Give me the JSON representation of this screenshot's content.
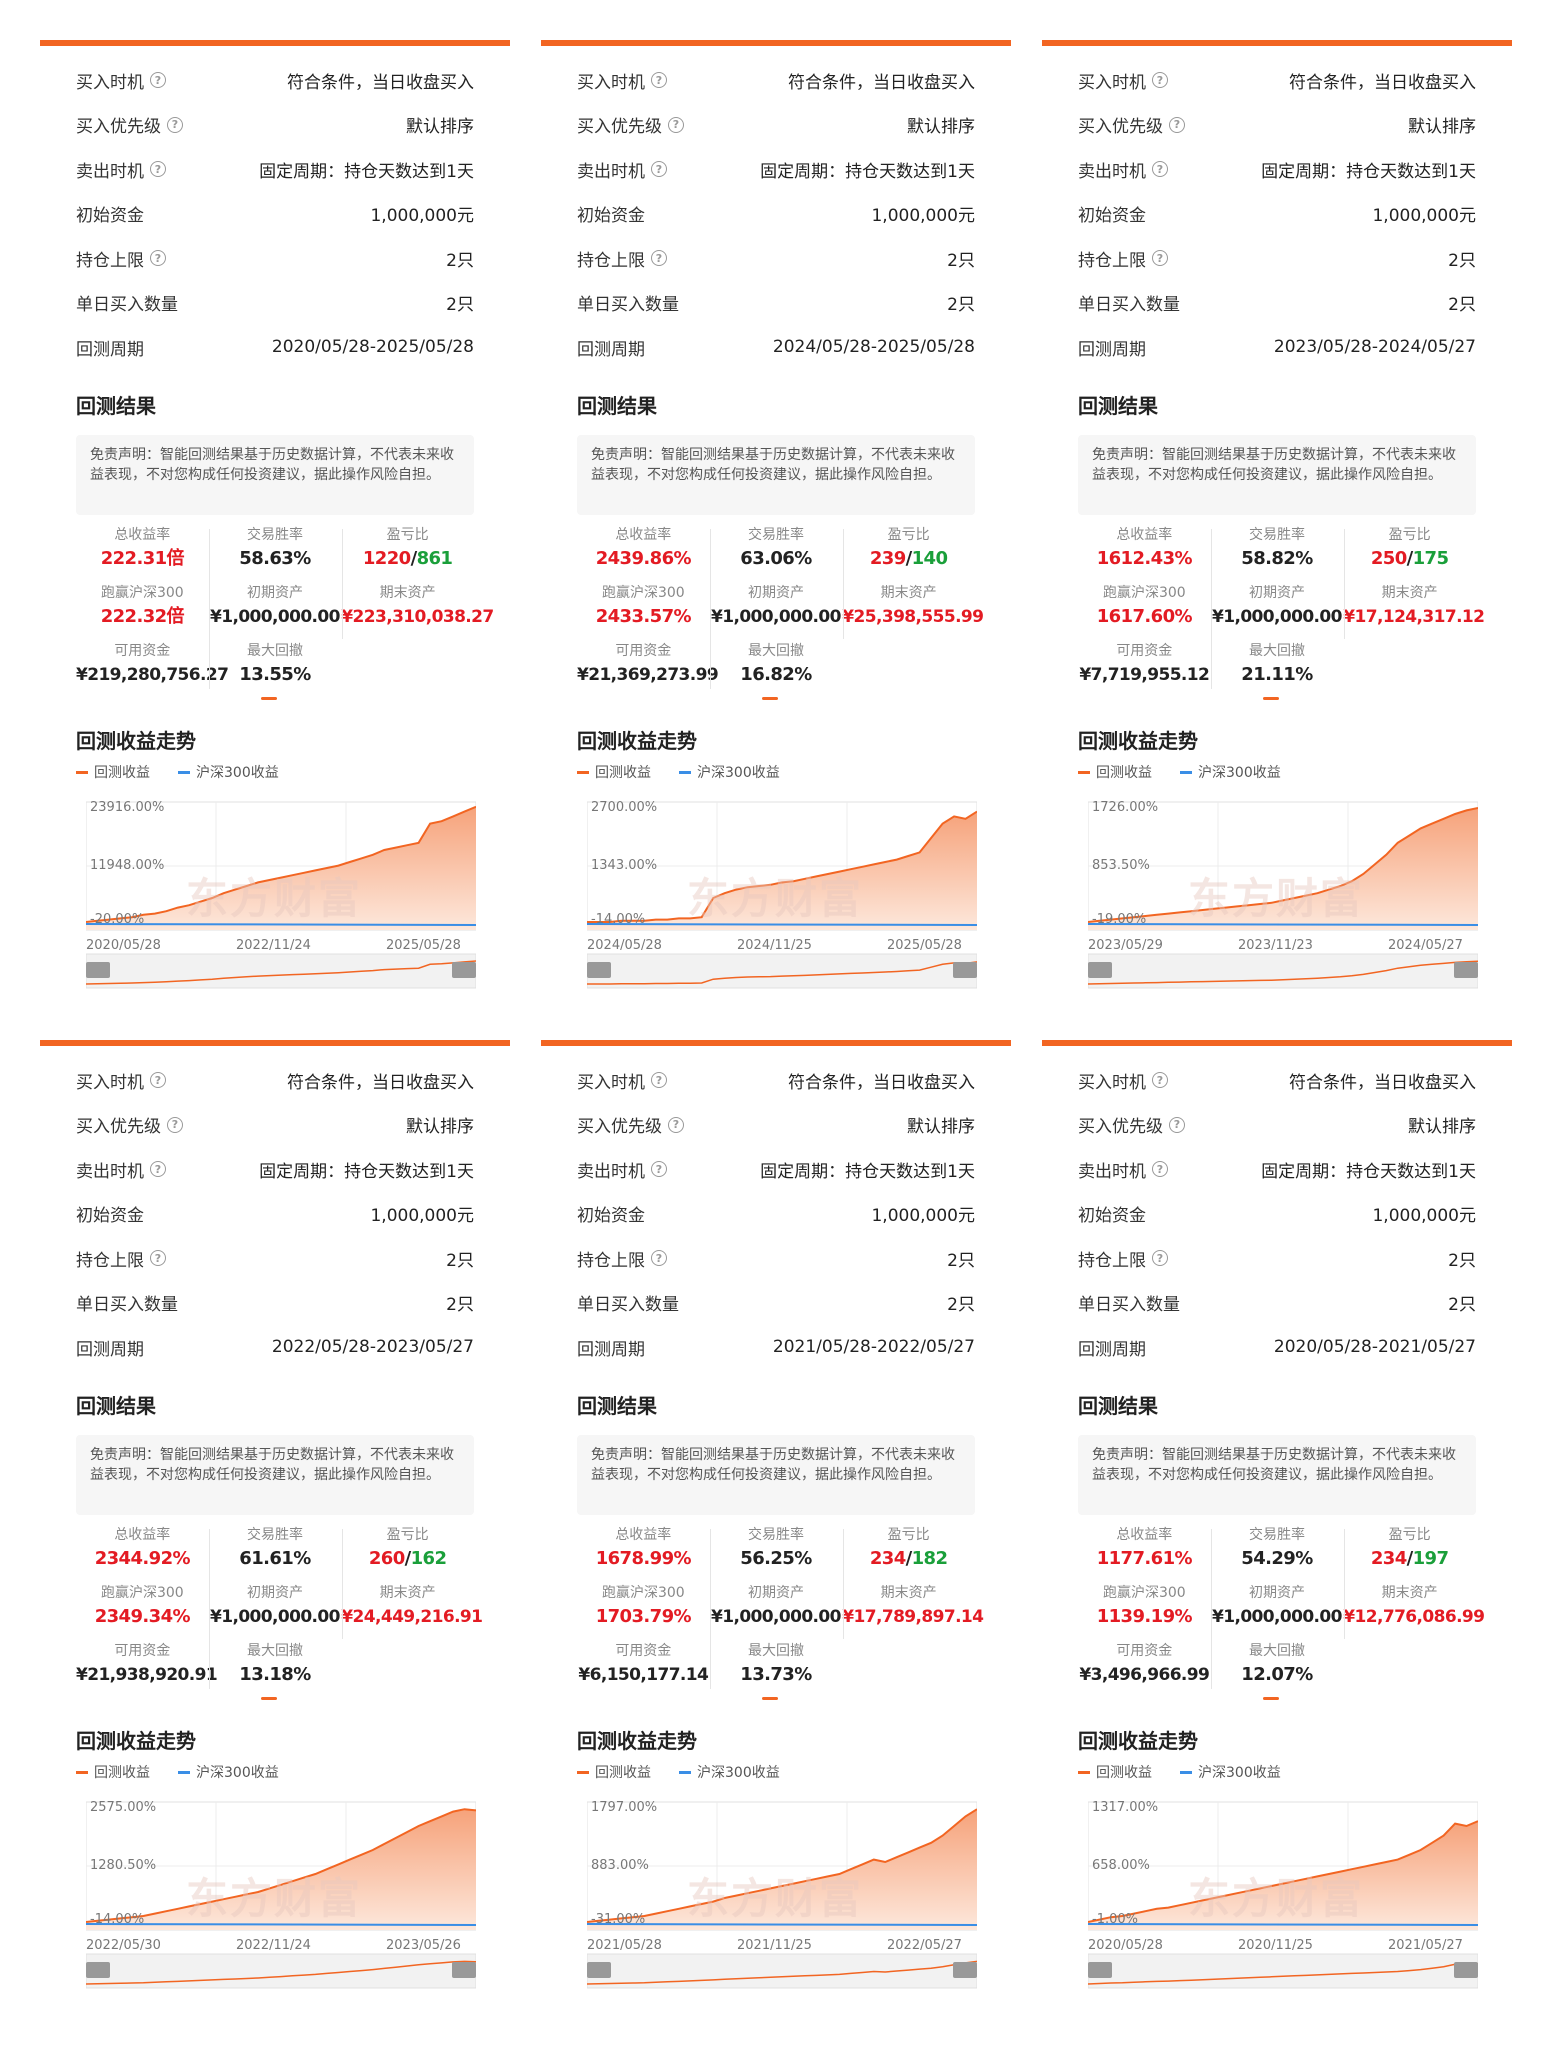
{
  "labels": {
    "buy_time": "买入时机",
    "buy_priority": "买入优先级",
    "sell_time": "卖出时机",
    "init_capital": "初始资金",
    "position_limit": "持仓上限",
    "daily_buy": "单日买入数量",
    "period": "回测周期",
    "result_title": "回测结果",
    "disclaimer": "免责声明：智能回测结果基于历史数据计算，不代表未来收益表现，不对您构成任何投资建议，据此操作风险自担。",
    "total_return": "总收益率",
    "win_rate": "交易胜率",
    "pl_ratio": "盈亏比",
    "beat_hs300": "跑赢沪深300",
    "init_assets": "初期资产",
    "final_assets": "期末资产",
    "available": "可用资金",
    "max_drawdown": "最大回撤",
    "trend_title": "回测收益走势",
    "legend_strategy": "回测收益",
    "legend_hs300": "沪深300收益",
    "watermark": "东方财富",
    "help_glyph": "?"
  },
  "colors": {
    "accent": "#f26522",
    "red": "#e31b23",
    "green": "#1a9f3a",
    "blue": "#3a8ee6"
  },
  "panels": [
    {
      "buy_time": "符合条件，当日收盘买入",
      "buy_priority": "默认排序",
      "sell_time": "固定周期：持仓天数达到1天",
      "init_capital": "1,000,000元",
      "position_limit": "2只",
      "daily_buy": "2只",
      "period": "2020/05/28-2025/05/28",
      "total_return": "222.31倍",
      "win_rate": "58.63%",
      "pl_win": "1220",
      "pl_sep": "/",
      "pl_loss": "861",
      "beat": "222.32倍",
      "init_assets": "¥1,000,000.00",
      "final_assets": "¥223,310,038.27",
      "available": "¥219,280,756.27",
      "max_dd": "13.55%",
      "y_top": "23916.00%",
      "y_mid": "11948.00%",
      "y_bot": "-20.00%",
      "x_start": "2020/05/28",
      "x_mid": "2022/11/24",
      "x_end": "2025/05/28",
      "curve": [
        0,
        1,
        2,
        3,
        4,
        6,
        7,
        9,
        12,
        14,
        17,
        20,
        24,
        27,
        30,
        33,
        35,
        37,
        39,
        41,
        43,
        45,
        47,
        50,
        53,
        56,
        60,
        62,
        64,
        66,
        82,
        84,
        88,
        92,
        96
      ]
    },
    {
      "buy_time": "符合条件，当日收盘买入",
      "buy_priority": "默认排序",
      "sell_time": "固定周期：持仓天数达到1天",
      "init_capital": "1,000,000元",
      "position_limit": "2只",
      "daily_buy": "2只",
      "period": "2024/05/28-2025/05/28",
      "total_return": "2439.86%",
      "win_rate": "63.06%",
      "pl_win": "239",
      "pl_sep": "/",
      "pl_loss": "140",
      "beat": "2433.57%",
      "init_assets": "¥1,000,000.00",
      "final_assets": "¥25,398,555.99",
      "available": "¥21,369,273.99",
      "max_dd": "16.82%",
      "y_top": "2700.00%",
      "y_mid": "1343.00%",
      "y_bot": "-14.00%",
      "x_start": "2024/05/28",
      "x_mid": "2024/11/25",
      "x_end": "2025/05/28",
      "curve": [
        0,
        0,
        0,
        1,
        1,
        1,
        2,
        2,
        3,
        3,
        4,
        20,
        24,
        27,
        29,
        30,
        31,
        33,
        34,
        36,
        38,
        40,
        42,
        44,
        46,
        48,
        50,
        52,
        55,
        58,
        70,
        82,
        88,
        86,
        92
      ]
    },
    {
      "buy_time": "符合条件，当日收盘买入",
      "buy_priority": "默认排序",
      "sell_time": "固定周期：持仓天数达到1天",
      "init_capital": "1,000,000元",
      "position_limit": "2只",
      "daily_buy": "2只",
      "period": "2023/05/28-2024/05/27",
      "total_return": "1612.43%",
      "win_rate": "58.82%",
      "pl_win": "250",
      "pl_sep": "/",
      "pl_loss": "175",
      "beat": "1617.60%",
      "init_assets": "¥1,000,000.00",
      "final_assets": "¥17,124,317.12",
      "available": "¥7,719,955.12",
      "max_dd": "21.11%",
      "y_top": "1726.00%",
      "y_mid": "853.50%",
      "y_bot": "-19.00%",
      "x_start": "2023/05/29",
      "x_mid": "2023/11/23",
      "x_end": "2024/05/27",
      "curve": [
        0,
        1,
        2,
        3,
        4,
        5,
        6,
        7,
        8,
        9,
        10,
        11,
        12,
        13,
        14,
        15,
        16,
        18,
        20,
        22,
        24,
        27,
        30,
        34,
        40,
        48,
        56,
        66,
        72,
        78,
        82,
        86,
        90,
        93,
        95
      ]
    },
    {
      "buy_time": "符合条件，当日收盘买入",
      "buy_priority": "默认排序",
      "sell_time": "固定周期：持仓天数达到1天",
      "init_capital": "1,000,000元",
      "position_limit": "2只",
      "daily_buy": "2只",
      "period": "2022/05/28-2023/05/27",
      "total_return": "2344.92%",
      "win_rate": "61.61%",
      "pl_win": "260",
      "pl_sep": "/",
      "pl_loss": "162",
      "beat": "2349.34%",
      "init_assets": "¥1,000,000.00",
      "final_assets": "¥24,449,216.91",
      "available": "¥21,938,920.91",
      "max_dd": "13.18%",
      "y_top": "2575.00%",
      "y_mid": "1280.50%",
      "y_bot": "-14.00%",
      "x_start": "2022/05/30",
      "x_mid": "2022/11/24",
      "x_end": "2023/05/26",
      "curve": [
        0,
        1,
        2,
        3,
        4,
        5,
        7,
        9,
        11,
        13,
        15,
        17,
        19,
        21,
        23,
        25,
        28,
        31,
        34,
        37,
        40,
        44,
        48,
        52,
        56,
        60,
        65,
        70,
        75,
        80,
        84,
        88,
        92,
        94,
        93
      ]
    },
    {
      "buy_time": "符合条件，当日收盘买入",
      "buy_priority": "默认排序",
      "sell_time": "固定周期：持仓天数达到1天",
      "init_capital": "1,000,000元",
      "position_limit": "2只",
      "daily_buy": "2只",
      "period": "2021/05/28-2022/05/27",
      "total_return": "1678.99%",
      "win_rate": "56.25%",
      "pl_win": "234",
      "pl_sep": "/",
      "pl_loss": "182",
      "beat": "1703.79%",
      "init_assets": "¥1,000,000.00",
      "final_assets": "¥17,789,897.14",
      "available": "¥6,150,177.14",
      "max_dd": "13.73%",
      "y_top": "1797.00%",
      "y_mid": "883.00%",
      "y_bot": "-31.00%",
      "x_start": "2021/05/28",
      "x_mid": "2021/11/25",
      "x_end": "2022/05/27",
      "curve": [
        0,
        1,
        2,
        3,
        4,
        5,
        7,
        9,
        11,
        13,
        15,
        17,
        20,
        22,
        24,
        26,
        28,
        30,
        32,
        34,
        36,
        38,
        40,
        44,
        48,
        52,
        50,
        54,
        58,
        62,
        66,
        72,
        80,
        88,
        94
      ]
    },
    {
      "buy_time": "符合条件，当日收盘买入",
      "buy_priority": "默认排序",
      "sell_time": "固定周期：持仓天数达到1天",
      "init_capital": "1,000,000元",
      "position_limit": "2只",
      "daily_buy": "2只",
      "period": "2020/05/28-2021/05/27",
      "total_return": "1177.61%",
      "win_rate": "54.29%",
      "pl_win": "234",
      "pl_sep": "/",
      "pl_loss": "197",
      "beat": "1139.19%",
      "init_assets": "¥1,000,000.00",
      "final_assets": "¥12,776,086.99",
      "available": "¥3,496,966.99",
      "max_dd": "12.07%",
      "y_top": "1317.00%",
      "y_mid": "658.00%",
      "y_bot": "-1.00%",
      "x_start": "2020/05/28",
      "x_mid": "2020/11/25",
      "x_end": "2021/05/27",
      "curve": [
        0,
        2,
        4,
        5,
        7,
        9,
        11,
        12,
        14,
        16,
        18,
        20,
        22,
        24,
        26,
        28,
        30,
        32,
        34,
        36,
        38,
        40,
        42,
        44,
        46,
        48,
        50,
        52,
        56,
        60,
        66,
        72,
        82,
        80,
        84
      ]
    }
  ]
}
